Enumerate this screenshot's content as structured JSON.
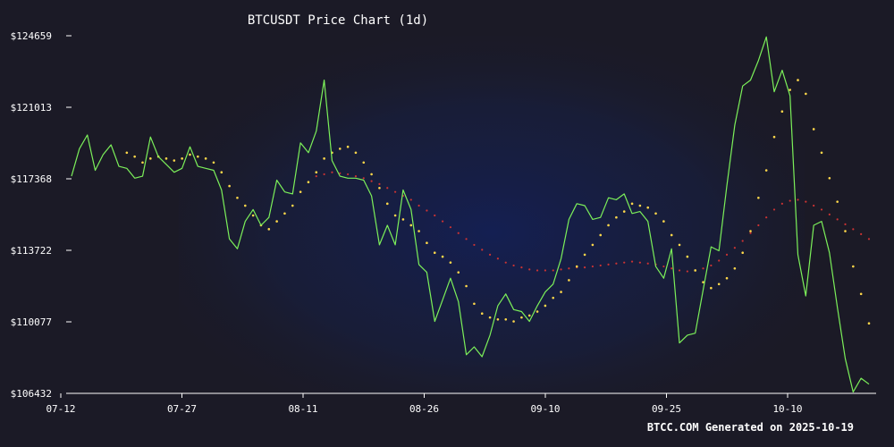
{
  "chart_data": {
    "type": "line",
    "title": "BTCUSDT Price Chart (1d)",
    "footer": "BTCC.COM Generated on 2025-10-19",
    "xlabel": "",
    "ylabel": "",
    "x_ticks": [
      "07-12",
      "07-27",
      "08-11",
      "08-26",
      "09-10",
      "09-25",
      "10-10"
    ],
    "y_ticks": [
      "$106432",
      "$110077",
      "$113722",
      "$117368",
      "$121013",
      "$124659"
    ],
    "ylim": [
      106432,
      124659
    ],
    "grid": false,
    "legend": "none",
    "colors": {
      "background": "#1b1a26",
      "price": "#7cf05a",
      "ma_short": "#ffd84a",
      "ma_long": "#cc3333",
      "axis": "#ffffff"
    },
    "series": [
      {
        "values": [
          117500,
          118900,
          119600,
          117800,
          118600,
          119100,
          118000,
          117900,
          117400,
          117500,
          119500,
          118500,
          118100,
          117700,
          117900,
          119000,
          118000,
          117900,
          117800,
          116800,
          114300,
          113800,
          115200,
          115800,
          115000,
          115400,
          117300,
          116700,
          116600,
          119200,
          118700,
          119800,
          122400,
          118300,
          117500,
          117400,
          117400,
          117300,
          116500,
          114000,
          115000,
          114000,
          116800,
          115800,
          113000,
          112600,
          110100,
          111200,
          112300,
          111100,
          108400,
          108800,
          108300,
          109400,
          110900,
          111500,
          110700,
          110600,
          110100,
          110900,
          111600,
          112000,
          113300,
          115300,
          116100,
          116000,
          115300,
          115400,
          116400,
          116300,
          116600,
          115600,
          115700,
          115200,
          112900,
          112300,
          113800,
          109000,
          109400,
          109500,
          111700,
          113900,
          113700,
          117000,
          120100,
          122100,
          122400,
          123400,
          124600,
          121800,
          122900,
          121600,
          113500,
          111400,
          115000,
          115200,
          113600,
          110800,
          108200,
          106500,
          107200,
          106900
        ]
      },
      {
        "values": [
          null,
          null,
          null,
          null,
          null,
          null,
          null,
          118700,
          118500,
          118200,
          118400,
          118500,
          118400,
          118300,
          118400,
          118600,
          118500,
          118400,
          118200,
          117700,
          117000,
          116400,
          116000,
          115500,
          115000,
          114800,
          115200,
          115600,
          116000,
          116700,
          117200,
          117700,
          118400,
          118700,
          118900,
          119000,
          118700,
          118200,
          117600,
          116900,
          116100,
          115500,
          115300,
          115000,
          114700,
          114100,
          113600,
          113400,
          113100,
          112600,
          111900,
          111000,
          110500,
          110300,
          110200,
          110200,
          110100,
          110300,
          110400,
          110600,
          110900,
          111300,
          111600,
          112200,
          112900,
          113500,
          114000,
          114500,
          115000,
          115400,
          115700,
          116100,
          116000,
          115900,
          115600,
          115200,
          114500,
          114000,
          113400,
          112700,
          112100,
          111800,
          112000,
          112300,
          112800,
          113600,
          114700,
          116400,
          117800,
          119500,
          120800,
          121900,
          122400,
          121700,
          119900,
          118700,
          117400,
          116200,
          114700,
          112900,
          111500,
          110000
        ]
      },
      {
        "values": [
          null,
          null,
          null,
          null,
          null,
          null,
          null,
          null,
          null,
          null,
          null,
          null,
          null,
          null,
          null,
          null,
          null,
          null,
          null,
          null,
          null,
          null,
          null,
          null,
          null,
          null,
          null,
          null,
          null,
          null,
          null,
          117500,
          117600,
          117700,
          117650,
          117600,
          117500,
          117400,
          117250,
          117100,
          116900,
          116700,
          116500,
          116300,
          116000,
          115750,
          115500,
          115200,
          114900,
          114600,
          114300,
          114000,
          113750,
          113500,
          113300,
          113100,
          112950,
          112850,
          112750,
          112700,
          112700,
          112700,
          112750,
          112800,
          112850,
          112850,
          112900,
          112950,
          113000,
          113050,
          113100,
          113150,
          113100,
          113050,
          113000,
          112900,
          112800,
          112700,
          112650,
          112700,
          112800,
          112950,
          113200,
          113500,
          113850,
          114200,
          114600,
          115000,
          115400,
          115800,
          116100,
          116250,
          116300,
          116200,
          116000,
          115800,
          115550,
          115300,
          115050,
          114800,
          114550,
          114300
        ]
      }
    ]
  }
}
